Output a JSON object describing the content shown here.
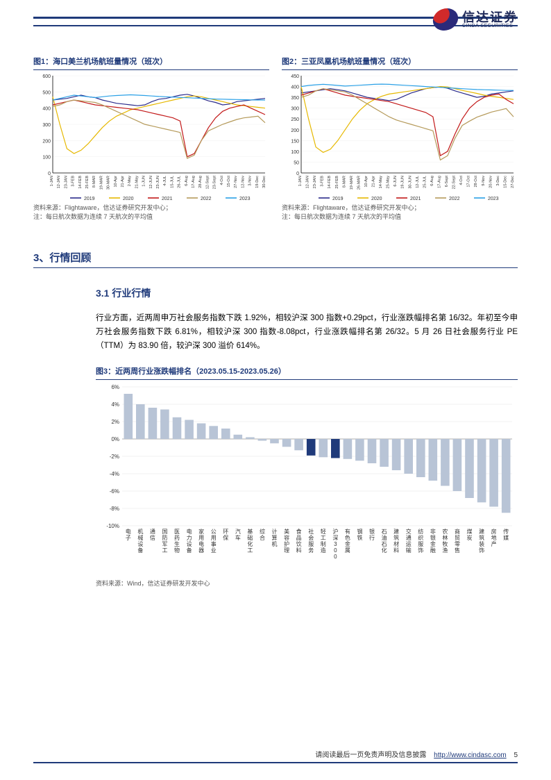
{
  "logo": {
    "cn": "信达证券",
    "en": "CINDA SECURITIES"
  },
  "chart1": {
    "title": "图1：海口美兰机场航班量情况（班次）",
    "source": "资料来源：Flightaware，信达证券研究开发中心；",
    "note": "注：每日航次数据为连续 7 天航次的平均值",
    "type": "line",
    "ylim": [
      0,
      600
    ],
    "ytick_step": 100,
    "x_labels": [
      "1-JAN",
      "12-JAN",
      "23-JAN",
      "3-FEB",
      "14-FEB",
      "25-FEB",
      "8-MAR",
      "19-MAR",
      "30-MAR",
      "10-Apr",
      "21-Apr",
      "2-May",
      "21-May",
      "1-JUN",
      "12-JUN",
      "23-JUN",
      "4-JUL",
      "15-JUL",
      "26-JUL",
      "6-Aug",
      "17-Aug",
      "28-Aug",
      "12-Sept",
      "23-Sept",
      "4-Oct",
      "15-Oct",
      "27-Nov",
      "12-Nov",
      "3-Nov",
      "19-Dec",
      "30-Dec"
    ],
    "legend": [
      "2019",
      "2020",
      "2021",
      "2022",
      "2023"
    ],
    "colors": [
      "#2a2a8a",
      "#e6b800",
      "#c21818",
      "#b59a5a",
      "#2aa0e6"
    ],
    "series": {
      "2019": [
        450,
        455,
        460,
        470,
        480,
        470,
        465,
        450,
        440,
        430,
        425,
        420,
        415,
        420,
        440,
        455,
        460,
        470,
        480,
        485,
        475,
        460,
        445,
        435,
        420,
        425,
        440,
        445,
        450,
        455,
        460
      ],
      "2020": [
        470,
        300,
        150,
        120,
        140,
        180,
        230,
        280,
        320,
        350,
        370,
        390,
        400,
        410,
        420,
        430,
        440,
        450,
        460,
        470,
        475,
        470,
        460,
        450,
        440,
        430,
        420,
        415,
        410,
        405,
        400
      ],
      "2021": [
        420,
        430,
        440,
        450,
        440,
        430,
        420,
        415,
        410,
        405,
        400,
        395,
        390,
        380,
        370,
        360,
        350,
        340,
        320,
        100,
        120,
        200,
        280,
        340,
        380,
        400,
        410,
        420,
        400,
        380,
        360
      ],
      "2022": [
        410,
        420,
        440,
        450,
        445,
        440,
        435,
        420,
        400,
        380,
        360,
        340,
        320,
        300,
        290,
        280,
        270,
        260,
        250,
        90,
        110,
        200,
        260,
        280,
        300,
        315,
        330,
        340,
        345,
        350,
        310
      ],
      "2023": [
        450,
        460,
        470,
        480,
        475,
        470,
        465,
        470,
        475,
        478,
        480,
        482,
        480,
        478,
        475,
        472,
        470,
        468,
        466,
        464,
        462,
        460,
        458,
        456,
        455,
        454,
        453,
        452,
        451,
        450,
        450
      ]
    }
  },
  "chart2": {
    "title": "图2：三亚凤凰机场航班量情况（班次）",
    "source": "资料来源：Flightaware，信达证券研究开发中心；",
    "note": "注：每日航次数据为连续 7 天航次的平均值",
    "type": "line",
    "ylim": [
      0,
      450
    ],
    "ytick_step": 50,
    "x_labels": [
      "1-JAN",
      "12-JAN",
      "23-JAN",
      "3-FEB",
      "14-FEB",
      "25-FEB",
      "8-MAR",
      "19-MAR",
      "26-MAR",
      "10-Apr",
      "21-Apr",
      "14-May",
      "25-May",
      "6-JUN",
      "19-JUN",
      "30-JUN",
      "12-JUL",
      "25-JUL",
      "6-Aug",
      "17-Aug",
      "6-Sept",
      "22-Sept",
      "4-Oct",
      "17-Oct",
      "28-Oct",
      "9-Nov",
      "20-Nov",
      "3-Dec",
      "15-Dec",
      "27-Dec"
    ],
    "legend": [
      "2019",
      "2020",
      "2021",
      "2022",
      "2023"
    ],
    "colors": [
      "#2a2a8a",
      "#e6b800",
      "#c21818",
      "#b59a5a",
      "#2aa0e6"
    ],
    "series": {
      "2019": [
        370,
        375,
        380,
        385,
        390,
        385,
        380,
        370,
        360,
        350,
        345,
        340,
        335,
        340,
        355,
        370,
        380,
        390,
        395,
        398,
        392,
        380,
        370,
        360,
        350,
        355,
        365,
        370,
        375,
        380
      ],
      "2020": [
        400,
        250,
        120,
        95,
        110,
        150,
        200,
        250,
        290,
        320,
        340,
        355,
        365,
        370,
        375,
        380,
        385,
        390,
        395,
        400,
        398,
        390,
        382,
        375,
        368,
        360,
        355,
        350,
        345,
        340
      ],
      "2021": [
        360,
        370,
        380,
        390,
        380,
        370,
        360,
        355,
        350,
        345,
        340,
        335,
        330,
        320,
        310,
        300,
        290,
        280,
        260,
        80,
        100,
        180,
        250,
        300,
        330,
        350,
        360,
        365,
        340,
        320
      ],
      "2022": [
        350,
        360,
        380,
        390,
        385,
        380,
        375,
        360,
        340,
        320,
        300,
        280,
        260,
        245,
        235,
        225,
        215,
        205,
        195,
        60,
        80,
        160,
        220,
        240,
        258,
        270,
        282,
        290,
        298,
        260
      ],
      "2023": [
        400,
        405,
        408,
        410,
        408,
        405,
        402,
        404,
        406,
        408,
        410,
        411,
        410,
        408,
        406,
        404,
        402,
        400,
        398,
        396,
        394,
        392,
        390,
        388,
        386,
        385,
        384,
        383,
        382,
        382
      ]
    }
  },
  "section": {
    "num_title": "3、行情回顾",
    "sub_title": "3.1 行业行情",
    "paragraph": "行业方面，近两周申万社会服务指数下跌 1.92%，相较沪深 300 指数+0.29pct，行业涨跌幅排名第 16/32。年初至今申万社会服务指数下跌 6.81%，相较沪深 300 指数-8.08pct，行业涨跌幅排名第 26/32。5 月 26 日社会服务行业 PE（TTM）为 83.90 倍，较沪深 300 溢价 614%。"
  },
  "bar_chart": {
    "title": "图3：近两周行业涨跌幅排名（2023.05.15-2023.05.26）",
    "source": "资料来源：Wind，信达证券研发开发中心",
    "type": "bar",
    "ylim": [
      -10,
      6
    ],
    "ytick_step": 2,
    "y_suffix": "%",
    "bar_color_default": "#b8c4d6",
    "bar_color_highlight": "#1f3a7a",
    "grid_color": "#e5e5e5",
    "categories": [
      "电子",
      "机械设备",
      "通信",
      "国防军工",
      "医药生物",
      "电力设备",
      "家用电器",
      "公用事业",
      "环保",
      "汽车",
      "基础化工",
      "综合",
      "计算机",
      "美容护理",
      "食品饮料",
      "社会服务",
      "轻工制造",
      "沪深300",
      "有色金属",
      "钢铁",
      "银行",
      "石油石化",
      "建筑材料",
      "交通运输",
      "纺织服饰",
      "非银金融",
      "农林牧渔",
      "商贸零售",
      "煤炭",
      "建筑装饰",
      "房地产",
      "传媒"
    ],
    "values": [
      5.2,
      4.0,
      3.6,
      3.4,
      2.5,
      2.2,
      1.8,
      1.5,
      1.2,
      0.5,
      0.2,
      -0.2,
      -0.5,
      -0.9,
      -1.3,
      -1.9,
      -2.1,
      -2.2,
      -2.3,
      -2.5,
      -2.8,
      -3.2,
      -3.6,
      -4.0,
      -4.4,
      -4.8,
      -5.4,
      -6.0,
      -6.8,
      -7.3,
      -7.8,
      -8.5
    ],
    "highlight_idx": [
      15,
      17
    ]
  },
  "footer": {
    "text": "请阅读最后一页免责声明及信息披露",
    "url": "http://www.cindasc.com",
    "page": "5"
  }
}
